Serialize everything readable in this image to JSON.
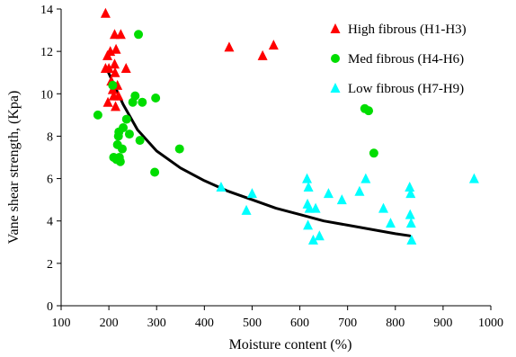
{
  "chart_data": {
    "type": "scatter",
    "xlabel": "Moisture content (%)",
    "ylabel": "Vane shear strength, (Kpa)",
    "xlim": [
      100,
      1000
    ],
    "ylim": [
      0,
      14
    ],
    "x_ticks": [
      100,
      200,
      300,
      400,
      500,
      600,
      700,
      800,
      900,
      1000
    ],
    "y_ticks": [
      0,
      2,
      4,
      6,
      8,
      10,
      12,
      14
    ],
    "grid": false,
    "legend_position": "top-right",
    "series": [
      {
        "name": "High fibrous (H1-H3)",
        "marker": "triangle",
        "color": "#ff0000",
        "points": [
          [
            193,
            13.8
          ],
          [
            193,
            11.2
          ],
          [
            197,
            11.8
          ],
          [
            200,
            11.2
          ],
          [
            198,
            9.6
          ],
          [
            203,
            12.0
          ],
          [
            205,
            10.6
          ],
          [
            208,
            10.2
          ],
          [
            210,
            9.9
          ],
          [
            212,
            12.8
          ],
          [
            212,
            11.4
          ],
          [
            213,
            11.0
          ],
          [
            214,
            9.4
          ],
          [
            215,
            12.1
          ],
          [
            218,
            10.4
          ],
          [
            220,
            9.9
          ],
          [
            225,
            12.8
          ],
          [
            236,
            11.2
          ],
          [
            452,
            12.2
          ],
          [
            522,
            11.8
          ],
          [
            545,
            12.3
          ]
        ]
      },
      {
        "name": "Med fibrous (H4-H6)",
        "marker": "circle",
        "color": "#00dd00",
        "points": [
          [
            177,
            9.0
          ],
          [
            208,
            10.4
          ],
          [
            210,
            7.0
          ],
          [
            216,
            6.9
          ],
          [
            218,
            7.6
          ],
          [
            220,
            8.0
          ],
          [
            221,
            8.2
          ],
          [
            222,
            7.0
          ],
          [
            224,
            6.8
          ],
          [
            228,
            7.4
          ],
          [
            230,
            8.4
          ],
          [
            237,
            8.8
          ],
          [
            243,
            8.1
          ],
          [
            250,
            9.6
          ],
          [
            255,
            9.9
          ],
          [
            262,
            12.8
          ],
          [
            265,
            7.8
          ],
          [
            270,
            9.6
          ],
          [
            296,
            6.3
          ],
          [
            298,
            9.8
          ],
          [
            348,
            7.4
          ],
          [
            736,
            9.3
          ],
          [
            744,
            9.2
          ],
          [
            755,
            7.2
          ]
        ]
      },
      {
        "name": "Low fibrous (H7-H9)",
        "marker": "triangle",
        "color": "#00ffff",
        "points": [
          [
            435,
            5.6
          ],
          [
            488,
            4.5
          ],
          [
            500,
            5.3
          ],
          [
            615,
            6.0
          ],
          [
            616,
            4.8
          ],
          [
            617,
            3.8
          ],
          [
            618,
            5.6
          ],
          [
            620,
            4.6
          ],
          [
            628,
            3.1
          ],
          [
            633,
            4.6
          ],
          [
            641,
            3.3
          ],
          [
            660,
            5.3
          ],
          [
            688,
            5.0
          ],
          [
            725,
            5.4
          ],
          [
            738,
            6.0
          ],
          [
            775,
            4.6
          ],
          [
            790,
            3.9
          ],
          [
            830,
            5.6
          ],
          [
            831,
            4.3
          ],
          [
            832,
            5.3
          ],
          [
            833,
            3.9
          ],
          [
            834,
            3.1
          ],
          [
            965,
            6.0
          ]
        ]
      }
    ],
    "trendline": {
      "color": "#000000",
      "points": [
        [
          195,
          11.2
        ],
        [
          230,
          9.5
        ],
        [
          260,
          8.3
        ],
        [
          300,
          7.3
        ],
        [
          350,
          6.5
        ],
        [
          400,
          5.9
        ],
        [
          450,
          5.4
        ],
        [
          500,
          5.0
        ],
        [
          550,
          4.6
        ],
        [
          600,
          4.3
        ],
        [
          650,
          4.0
        ],
        [
          700,
          3.8
        ],
        [
          750,
          3.6
        ],
        [
          800,
          3.4
        ],
        [
          830,
          3.3
        ]
      ]
    }
  }
}
